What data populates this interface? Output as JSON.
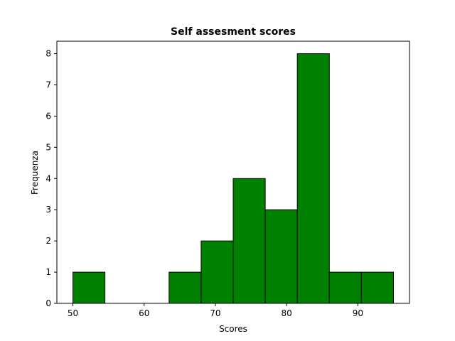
{
  "chart_data": {
    "type": "bar",
    "title": "Self assesment scores",
    "xlabel": "Scores",
    "ylabel": "Frequenza",
    "bar_color": "#008000",
    "edge_color": "#000000",
    "xlim": [
      47.75,
      97.25
    ],
    "ylim": [
      0,
      8.4
    ],
    "xticks": [
      50,
      60,
      70,
      80,
      90
    ],
    "yticks": [
      0,
      1,
      2,
      3,
      4,
      5,
      6,
      7,
      8
    ],
    "bins": [
      {
        "start": 50.0,
        "end": 54.5,
        "count": 1
      },
      {
        "start": 54.5,
        "end": 59.0,
        "count": 0
      },
      {
        "start": 59.0,
        "end": 63.5,
        "count": 0
      },
      {
        "start": 63.5,
        "end": 68.0,
        "count": 1
      },
      {
        "start": 68.0,
        "end": 72.5,
        "count": 2
      },
      {
        "start": 72.5,
        "end": 77.0,
        "count": 4
      },
      {
        "start": 77.0,
        "end": 81.5,
        "count": 3
      },
      {
        "start": 81.5,
        "end": 86.0,
        "count": 8
      },
      {
        "start": 86.0,
        "end": 90.5,
        "count": 1
      },
      {
        "start": 90.5,
        "end": 95.0,
        "count": 1
      }
    ],
    "grid": false,
    "legend": "none"
  }
}
